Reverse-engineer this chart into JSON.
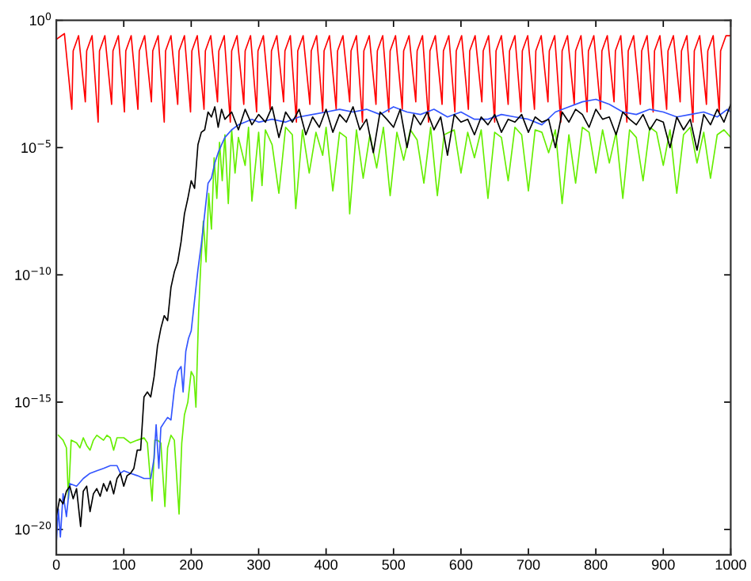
{
  "chart_data": {
    "type": "line",
    "log": "y",
    "xlim": [
      0,
      1000
    ],
    "xticks": [
      0,
      100,
      200,
      300,
      400,
      500,
      600,
      700,
      800,
      900,
      1000
    ],
    "ylim": [
      1e-21,
      1
    ],
    "yticks": [
      {
        "value": 1e-20,
        "label": "10$^{−20}$"
      },
      {
        "value": 1e-15,
        "label": "10$^{−15}$"
      },
      {
        "value": 1e-10,
        "label": "10$^{−10}$"
      },
      {
        "value": 1e-05,
        "label": "10$^{−5}$"
      },
      {
        "value": 1,
        "label": "10$^{0}$"
      }
    ],
    "series": [
      {
        "color": "#ff0000",
        "x": [
          0,
          12,
          23,
          25,
          33,
          43,
          45,
          53,
          62,
          64,
          72,
          82,
          84,
          92,
          101,
          103,
          111,
          121,
          123,
          131,
          141,
          143,
          151,
          160,
          162,
          170,
          180,
          182,
          190,
          199,
          201,
          209,
          219,
          221,
          229,
          239,
          241,
          249,
          258,
          260,
          268,
          278,
          280,
          288,
          297,
          299,
          307,
          317,
          319,
          327,
          337,
          339,
          347,
          356,
          358,
          366,
          376,
          378,
          386,
          395,
          397,
          405,
          415,
          417,
          425,
          435,
          437,
          445,
          454,
          456,
          464,
          474,
          476,
          484,
          493,
          495,
          503,
          513,
          515,
          523,
          533,
          535,
          543,
          552,
          554,
          562,
          572,
          574,
          582,
          591,
          593,
          601,
          611,
          613,
          621,
          631,
          633,
          641,
          650,
          652,
          660,
          670,
          672,
          680,
          689,
          691,
          699,
          709,
          711,
          719,
          729,
          731,
          739,
          748,
          750,
          758,
          768,
          770,
          778,
          787,
          789,
          797,
          807,
          809,
          817,
          827,
          829,
          837,
          846,
          848,
          856,
          866,
          868,
          876,
          885,
          887,
          895,
          905,
          907,
          915,
          925,
          927,
          935,
          944,
          946,
          954,
          964,
          966,
          974,
          983,
          985,
          993,
          1000
        ],
        "values": [
          0.18,
          0.3,
          0.00032,
          0.063,
          0.25,
          0.00063,
          0.063,
          0.25,
          0.0001,
          0.063,
          0.25,
          0.0005,
          0.063,
          0.25,
          0.00025,
          0.063,
          0.25,
          0.00032,
          0.063,
          0.25,
          0.00063,
          0.063,
          0.25,
          0.0001,
          0.063,
          0.25,
          0.0005,
          0.063,
          0.25,
          0.00025,
          0.063,
          0.25,
          0.00032,
          0.063,
          0.25,
          0.00063,
          0.063,
          0.25,
          0.0001,
          0.063,
          0.25,
          0.0005,
          0.063,
          0.25,
          0.00025,
          0.063,
          0.25,
          0.00032,
          0.063,
          0.25,
          0.00063,
          0.063,
          0.25,
          0.0001,
          0.063,
          0.25,
          0.0005,
          0.063,
          0.25,
          0.00025,
          0.063,
          0.25,
          0.00032,
          0.063,
          0.25,
          0.00063,
          0.063,
          0.25,
          0.0001,
          0.063,
          0.25,
          0.0005,
          0.063,
          0.25,
          0.00025,
          0.063,
          0.25,
          0.00032,
          0.063,
          0.25,
          0.00063,
          0.063,
          0.25,
          0.0001,
          0.063,
          0.25,
          0.0005,
          0.063,
          0.25,
          0.00025,
          0.063,
          0.25,
          0.00032,
          0.063,
          0.25,
          0.00063,
          0.063,
          0.25,
          0.0001,
          0.063,
          0.25,
          0.0005,
          0.063,
          0.25,
          0.00025,
          0.063,
          0.25,
          0.00032,
          0.063,
          0.25,
          0.00063,
          0.063,
          0.25,
          0.0001,
          0.063,
          0.25,
          0.0005,
          0.063,
          0.25,
          0.00025,
          0.063,
          0.25,
          0.00032,
          0.063,
          0.25,
          0.00063,
          0.063,
          0.25,
          0.0001,
          0.063,
          0.25,
          0.0005,
          0.063,
          0.25,
          0.00025,
          0.063,
          0.25,
          0.00032,
          0.063,
          0.25,
          0.00063,
          0.063,
          0.25,
          0.0001,
          0.063,
          0.25,
          0.0005,
          0.063,
          0.25,
          0.00025,
          0.063,
          0.25,
          0.25
        ]
      },
      {
        "color": "#66ee00",
        "x": [
          3,
          10,
          15,
          18,
          22,
          30,
          35,
          40,
          45,
          50,
          55,
          60,
          70,
          75,
          80,
          85,
          90,
          100,
          110,
          120,
          130,
          135,
          142,
          146,
          150,
          155,
          161,
          165,
          170,
          175,
          182,
          186,
          190,
          195,
          200,
          204,
          207,
          211,
          214,
          218,
          222,
          226,
          230,
          234,
          238,
          242,
          246,
          250,
          255,
          260,
          265,
          270,
          280,
          285,
          290,
          300,
          305,
          310,
          320,
          330,
          340,
          350,
          355,
          365,
          375,
          385,
          395,
          400,
          410,
          420,
          430,
          435,
          445,
          455,
          465,
          475,
          485,
          495,
          505,
          515,
          525,
          535,
          545,
          555,
          565,
          575,
          590,
          600,
          610,
          620,
          630,
          640,
          650,
          660,
          670,
          680,
          690,
          700,
          710,
          720,
          730,
          740,
          750,
          760,
          770,
          780,
          790,
          800,
          810,
          820,
          830,
          840,
          850,
          860,
          870,
          880,
          890,
          900,
          910,
          920,
          930,
          940,
          950,
          960,
          970,
          980,
          990,
          1000
        ],
        "values": [
          5e-17,
          3.2e-17,
          1.6e-17,
          1.6e-19,
          3.2e-17,
          2.5e-17,
          1.6e-17,
          4e-17,
          2e-17,
          1.3e-17,
          3.2e-17,
          5e-17,
          3.2e-17,
          5e-17,
          4e-17,
          1.3e-17,
          4e-17,
          4e-17,
          2.5e-17,
          3.2e-17,
          4e-17,
          2.5e-17,
          1.3e-19,
          3.2e-17,
          3.2e-17,
          2.5e-17,
          7.9e-20,
          1.6e-17,
          5e-17,
          3.2e-17,
          4e-20,
          2.5e-17,
          3.2e-16,
          1e-15,
          1.6e-14,
          1e-14,
          6.3e-16,
          3.2e-12,
          2e-10,
          1.3e-08,
          3.2e-10,
          1.6e-07,
          6.3e-09,
          4e-06,
          1e-07,
          1.6e-05,
          5e-07,
          3.2e-05,
          6.3e-08,
          5e-05,
          1e-06,
          2.5e-05,
          2e-06,
          6.3e-05,
          7.9e-08,
          4e-05,
          3.2e-07,
          5e-05,
          1.3e-05,
          1.6e-07,
          6.3e-05,
          3.2e-05,
          4e-08,
          5e-05,
          1e-06,
          4e-05,
          5e-06,
          6.3e-05,
          2e-07,
          4e-05,
          2.5e-05,
          2.5e-08,
          5e-05,
          6.3e-07,
          3.2e-05,
          1.6e-06,
          6.3e-05,
          1.3e-07,
          4e-05,
          3.2e-06,
          5e-05,
          2e-05,
          4e-07,
          6.3e-05,
          1.3e-07,
          3.2e-05,
          5e-05,
          1e-06,
          4e-05,
          4e-06,
          5e-05,
          1e-07,
          4e-05,
          2.5e-05,
          5e-07,
          6.3e-05,
          3.2e-05,
          2e-07,
          5e-05,
          4e-05,
          6.3e-06,
          5e-05,
          6.3e-08,
          3.2e-05,
          4e-07,
          6.3e-05,
          4e-05,
          1e-06,
          5e-05,
          2.5e-06,
          4e-05,
          1e-07,
          5e-05,
          2.5e-05,
          5e-07,
          6.3e-05,
          4e-05,
          2e-06,
          5e-05,
          1.6e-07,
          3.2e-05,
          6.3e-05,
          2.5e-06,
          4e-05,
          6.3e-07,
          3.2e-05,
          5e-05,
          2.5e-05
        ]
      },
      {
        "color": "#3355ff",
        "x": [
          0,
          3,
          6,
          10,
          15,
          20,
          30,
          40,
          50,
          60,
          70,
          80,
          90,
          95,
          100,
          110,
          120,
          130,
          140,
          145,
          148,
          152,
          155,
          160,
          165,
          170,
          175,
          180,
          185,
          188,
          192,
          196,
          200,
          205,
          210,
          215,
          220,
          225,
          230,
          235,
          240,
          245,
          250,
          260,
          270,
          280,
          290,
          300,
          320,
          340,
          360,
          380,
          400,
          420,
          440,
          460,
          480,
          500,
          520,
          540,
          560,
          580,
          600,
          620,
          640,
          660,
          680,
          700,
          720,
          740,
          760,
          780,
          800,
          820,
          840,
          860,
          880,
          900,
          920,
          940,
          960,
          980,
          995,
          1000
        ],
        "values": [
          3.2e-21,
          6.3e-20,
          5e-21,
          2.5e-19,
          3.2e-20,
          6.3e-19,
          5e-19,
          1e-18,
          1.6e-18,
          2e-18,
          2.5e-18,
          3.2e-18,
          3.2e-18,
          1.6e-18,
          2e-18,
          1.6e-18,
          1.3e-18,
          1e-18,
          1e-18,
          6.3e-18,
          1.3e-16,
          2.5e-18,
          1e-16,
          1.6e-16,
          2.5e-16,
          2e-16,
          3.2e-15,
          1.6e-14,
          2.5e-14,
          2.5e-15,
          1e-13,
          3.2e-13,
          6.3e-13,
          1e-11,
          1.6e-10,
          1.6e-09,
          2.5e-08,
          4e-07,
          6.3e-07,
          2.5e-06,
          6.3e-06,
          1.3e-05,
          2.5e-05,
          5e-05,
          7.9e-05,
          0.0001,
          0.00013,
          0.0001,
          0.00013,
          0.0001,
          0.00016,
          0.0002,
          0.00025,
          0.00032,
          0.00025,
          0.00032,
          0.0002,
          0.0004,
          0.00025,
          0.0002,
          0.00032,
          0.00016,
          0.00025,
          0.00013,
          0.00013,
          0.0002,
          0.00016,
          0.00013,
          7.9e-05,
          0.00025,
          0.0004,
          0.00063,
          0.00079,
          0.0005,
          0.00025,
          0.0002,
          0.00032,
          0.00025,
          0.00016,
          0.0002,
          0.00025,
          0.00016,
          0.00032,
          0.00025
        ]
      },
      {
        "color": "#000000",
        "x": [
          0,
          5,
          10,
          15,
          20,
          25,
          30,
          36,
          40,
          45,
          50,
          55,
          60,
          65,
          70,
          75,
          80,
          85,
          90,
          95,
          100,
          105,
          110,
          115,
          120,
          125,
          130,
          135,
          140,
          145,
          150,
          155,
          160,
          165,
          170,
          175,
          180,
          185,
          190,
          195,
          200,
          205,
          210,
          215,
          220,
          225,
          230,
          235,
          240,
          245,
          250,
          260,
          270,
          280,
          290,
          300,
          310,
          320,
          330,
          340,
          350,
          360,
          370,
          380,
          390,
          400,
          410,
          420,
          430,
          440,
          450,
          460,
          470,
          480,
          490,
          500,
          510,
          520,
          530,
          540,
          550,
          560,
          570,
          580,
          590,
          600,
          610,
          620,
          630,
          640,
          650,
          660,
          670,
          680,
          690,
          700,
          710,
          720,
          730,
          740,
          750,
          760,
          770,
          780,
          790,
          800,
          810,
          820,
          830,
          840,
          850,
          860,
          870,
          880,
          890,
          900,
          910,
          920,
          930,
          940,
          950,
          960,
          970,
          980,
          990,
          1000
        ],
        "values": [
          3.2e-20,
          1.6e-19,
          1e-19,
          3.2e-19,
          5e-19,
          1.6e-19,
          4e-19,
          1.3e-20,
          3.2e-19,
          5e-19,
          5e-20,
          2.5e-19,
          4e-19,
          2e-19,
          6.3e-19,
          3.2e-19,
          7.9e-19,
          2.5e-19,
          1e-18,
          1.6e-18,
          5e-19,
          1.3e-18,
          1.6e-18,
          2.5e-18,
          1.3e-17,
          1.3e-17,
          1.6e-15,
          2.5e-15,
          1.6e-15,
          1e-14,
          1.6e-13,
          7.9e-13,
          2.5e-12,
          1.6e-12,
          3.2e-11,
          1.3e-10,
          3.2e-10,
          2e-09,
          2.5e-08,
          1e-07,
          5e-07,
          2.5e-07,
          1.3e-05,
          4e-05,
          5e-05,
          0.00025,
          0.00016,
          0.0004,
          6.3e-05,
          0.00032,
          0.00013,
          0.00025,
          5e-05,
          0.00032,
          7.9e-05,
          0.0002,
          0.0001,
          0.0004,
          2.5e-05,
          0.00025,
          0.0001,
          0.00032,
          3.2e-05,
          0.00016,
          6.3e-05,
          0.00032,
          4e-05,
          0.0002,
          0.0001,
          0.0004,
          5e-05,
          0.00013,
          6.3e-06,
          0.00025,
          0.00013,
          6.3e-05,
          0.00032,
          1e-05,
          0.0002,
          7.9e-05,
          0.00025,
          5e-05,
          0.00016,
          5e-06,
          0.0002,
          0.0001,
          0.00013,
          3.2e-05,
          0.00016,
          7.9e-05,
          0.0002,
          4e-05,
          0.00013,
          0.0001,
          0.0002,
          4e-05,
          0.00016,
          0.0001,
          0.00013,
          1e-05,
          0.00025,
          0.0001,
          0.00032,
          0.0002,
          6.3e-05,
          0.00032,
          0.00013,
          0.00016,
          3.2e-05,
          0.00025,
          0.00013,
          7.9e-05,
          0.0002,
          5e-05,
          0.00013,
          0.0001,
          1e-05,
          0.00016,
          5e-05,
          0.00013,
          7.9e-06,
          0.0002,
          7.9e-05,
          0.00032,
          0.0001,
          0.0005
        ]
      }
    ]
  }
}
